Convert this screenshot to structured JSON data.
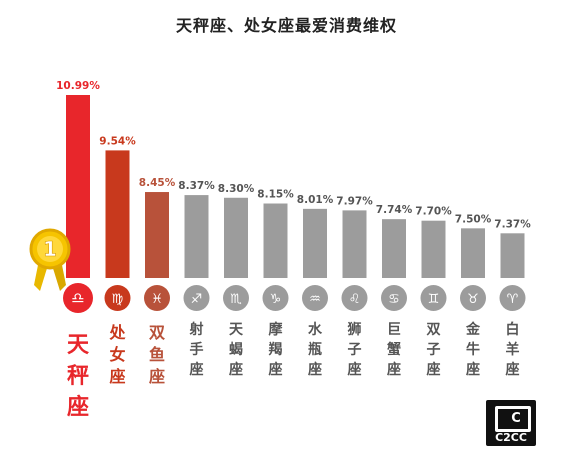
{
  "chart_data": {
    "type": "bar",
    "title": "天秤座、处女座最爱消费维权",
    "categories": [
      "天秤座",
      "处女座",
      "双鱼座",
      "射手座",
      "天蝎座",
      "摩羯座",
      "水瓶座",
      "狮子座",
      "巨蟹座",
      "双子座",
      "金牛座",
      "白羊座"
    ],
    "value_labels": [
      "10.99%",
      "9.54%",
      "8.45%",
      "8.37%",
      "8.30%",
      "8.15%",
      "8.01%",
      "7.97%",
      "7.74%",
      "7.70%",
      "7.50%",
      "7.37%"
    ],
    "values": [
      10.99,
      9.54,
      8.45,
      8.37,
      8.3,
      8.15,
      8.01,
      7.97,
      7.74,
      7.7,
      7.5,
      7.37
    ],
    "symbols": [
      "♎",
      "♍",
      "♓",
      "♐",
      "♏",
      "♑",
      "♒",
      "♌",
      "♋",
      "♊",
      "♉",
      "♈"
    ],
    "colors": {
      "first": "#e8262b",
      "second": "#c8391d",
      "third": "#b8523a",
      "rest": "#9c9c9c",
      "rest_label": "#555555",
      "medal": "#f2b705"
    },
    "medal_label": "1",
    "ylabel": "",
    "xlabel": "",
    "grid": false,
    "legend": "none"
  },
  "logo": {
    "mark": "C",
    "text": "C2CC"
  }
}
